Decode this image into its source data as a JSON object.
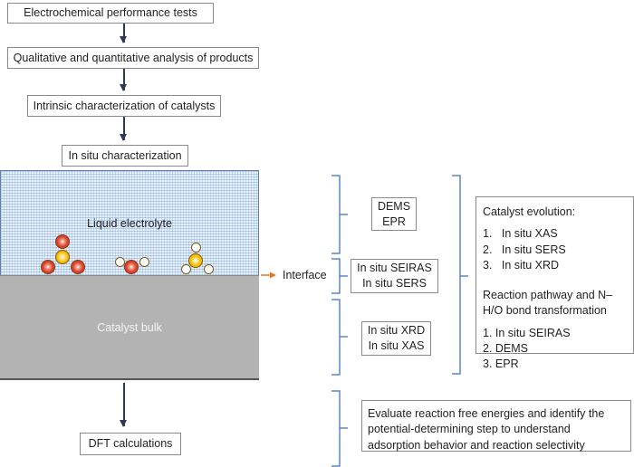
{
  "flow": {
    "step1": "Electrochemical performance tests",
    "step2": "Qualitative and quantitative analysis of products",
    "step3": "Intrinsic characterization of catalysts",
    "step4": "In situ characterization",
    "dft": "DFT calculations"
  },
  "schematic": {
    "electrolyte_label": "Liquid electrolyte",
    "bulk_label": "Catalyst bulk",
    "interface_label": "Interface"
  },
  "techniques": {
    "electrolyte": [
      "DEMS",
      "EPR"
    ],
    "interface": [
      "In situ SEIRAS",
      "In situ SERS"
    ],
    "bulk": [
      "In situ XRD",
      "In situ XAS"
    ]
  },
  "summary": {
    "catalyst_title": "Catalyst evolution:",
    "catalyst_items": [
      "1.   In situ XAS",
      "2.   In situ SERS",
      "3.   In situ XRD"
    ],
    "pathway_title": "Reaction pathway and N–H/O bond transformation",
    "pathway_items": [
      "1. In situ SEIRAS",
      "2. DEMS",
      "3. EPR"
    ]
  },
  "dft_description": "Evaluate reaction free energies and identify the potential-determining step to understand adsorption behavior and reaction selectivity",
  "colors": {
    "arrow": "#2b3a55",
    "bracket": "#5b86c4",
    "interface_arrow": "#e87722",
    "bulk": "#b3b3b3"
  }
}
